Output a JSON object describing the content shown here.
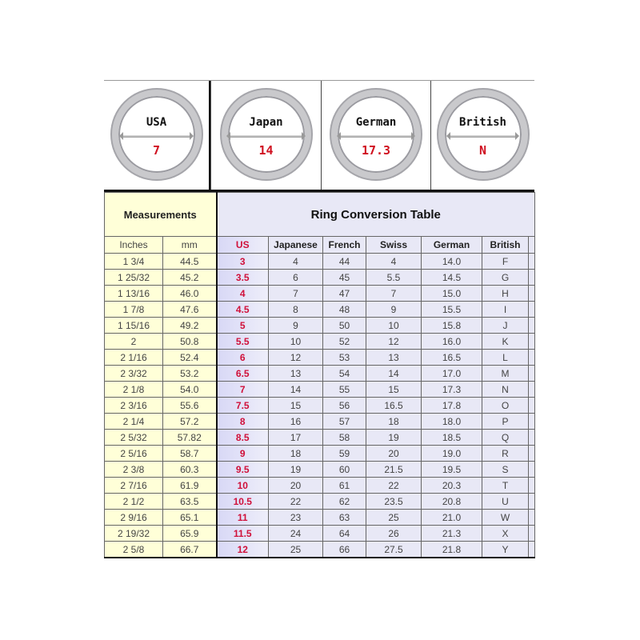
{
  "rings": [
    {
      "label": "USA",
      "value": "7"
    },
    {
      "label": "Japan",
      "value": "14"
    },
    {
      "label": "German",
      "value": "17.3"
    },
    {
      "label": "British",
      "value": "N"
    }
  ],
  "header": {
    "measurements": "Measurements",
    "title": "Ring Conversion Table"
  },
  "columns": [
    "Inches",
    "mm",
    "US",
    "Japanese",
    "French",
    "Swiss",
    "German",
    "British"
  ],
  "colors": {
    "us_text": "#d0103a",
    "measurements_bg": "#ffffd8",
    "conversion_bg": "#e8e8f6"
  },
  "rows": [
    [
      "1 3/4",
      "44.5",
      "3",
      "4",
      "44",
      "4",
      "14.0",
      "F"
    ],
    [
      "1 25/32",
      "45.2",
      "3.5",
      "6",
      "45",
      "5.5",
      "14.5",
      "G"
    ],
    [
      "1 13/16",
      "46.0",
      "4",
      "7",
      "47",
      "7",
      "15.0",
      "H"
    ],
    [
      "1 7/8",
      "47.6",
      "4.5",
      "8",
      "48",
      "9",
      "15.5",
      "I"
    ],
    [
      "1 15/16",
      "49.2",
      "5",
      "9",
      "50",
      "10",
      "15.8",
      "J"
    ],
    [
      "2",
      "50.8",
      "5.5",
      "10",
      "52",
      "12",
      "16.0",
      "K"
    ],
    [
      "2 1/16",
      "52.4",
      "6",
      "12",
      "53",
      "13",
      "16.5",
      "L"
    ],
    [
      "2 3/32",
      "53.2",
      "6.5",
      "13",
      "54",
      "14",
      "17.0",
      "M"
    ],
    [
      "2 1/8",
      "54.0",
      "7",
      "14",
      "55",
      "15",
      "17.3",
      "N"
    ],
    [
      "2 3/16",
      "55.6",
      "7.5",
      "15",
      "56",
      "16.5",
      "17.8",
      "O"
    ],
    [
      "2 1/4",
      "57.2",
      "8",
      "16",
      "57",
      "18",
      "18.0",
      "P"
    ],
    [
      "2 5/32",
      "57.82",
      "8.5",
      "17",
      "58",
      "19",
      "18.5",
      "Q"
    ],
    [
      "2 5/16",
      "58.7",
      "9",
      "18",
      "59",
      "20",
      "19.0",
      "R"
    ],
    [
      "2 3/8",
      "60.3",
      "9.5",
      "19",
      "60",
      "21.5",
      "19.5",
      "S"
    ],
    [
      "2 7/16",
      "61.9",
      "10",
      "20",
      "61",
      "22",
      "20.3",
      "T"
    ],
    [
      "2 1/2",
      "63.5",
      "10.5",
      "22",
      "62",
      "23.5",
      "20.8",
      "U"
    ],
    [
      "2 9/16",
      "65.1",
      "11",
      "23",
      "63",
      "25",
      "21.0",
      "W"
    ],
    [
      "2 19/32",
      "65.9",
      "11.5",
      "24",
      "64",
      "26",
      "21.3",
      "X"
    ],
    [
      "2 5/8",
      "66.7",
      "12",
      "25",
      "66",
      "27.5",
      "21.8",
      "Y"
    ]
  ]
}
